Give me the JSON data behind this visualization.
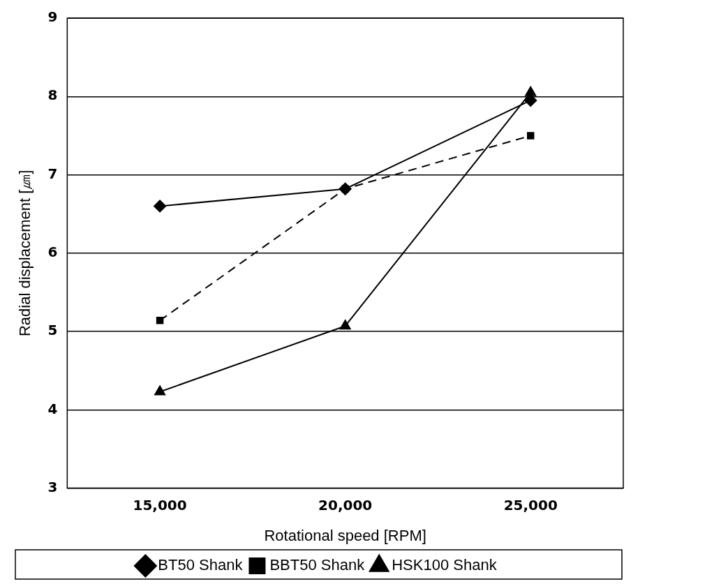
{
  "chart_data": {
    "type": "line",
    "xlabel": "Rotational speed [RPM]",
    "ylabel": "Radial displacement [㎛]",
    "categories": [
      "15,000",
      "20,000",
      "25,000"
    ],
    "series": [
      {
        "name": "BT50 Shank",
        "color": "#000000",
        "values": [
          6.6,
          6.82,
          7.95
        ],
        "marker": "diamond",
        "line_style": "solid"
      },
      {
        "name": "BBT50 Shank",
        "color": "#000000",
        "values": [
          5.14,
          6.82,
          7.5
        ],
        "marker": "square",
        "line_style": "dashed"
      },
      {
        "name": "HSK100 Shank",
        "color": "#000000",
        "values": [
          4.23,
          5.07,
          8.05
        ],
        "marker": "triangle",
        "line_style": "solid"
      }
    ],
    "ylim": [
      3,
      9
    ],
    "yticks": [
      3,
      4,
      5,
      6,
      7,
      8,
      9
    ],
    "grid": "y",
    "legend": "bottom"
  }
}
